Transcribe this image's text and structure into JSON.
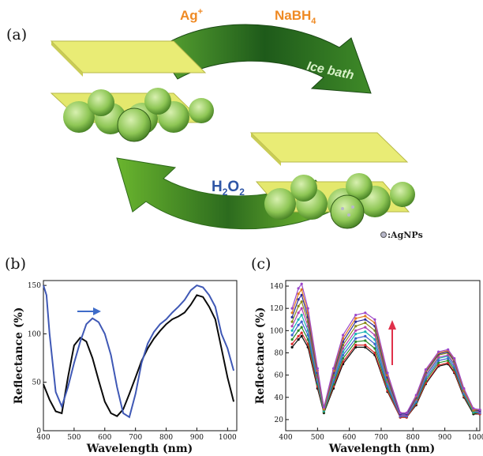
{
  "figure": {
    "panel_labels": [
      "(a)",
      "(b)",
      "(c)"
    ],
    "scheme": {
      "reagent_1": "Ag",
      "reagent_1_sup": "+",
      "reagent_2": "NaBH",
      "reagent_2_sub": "4",
      "condition": "Ice bath",
      "reverse_h": "H",
      "reverse_sub1": "2",
      "reverse_o": "O",
      "reverse_sub2": "2",
      "legend": ":AgNPs"
    },
    "colors": {
      "arrow_dark": "#1e5a1a",
      "arrow_light": "#7dc433",
      "plate": "#e9ec75",
      "sphere": "#8ec655",
      "red_arrow": "#e0304a",
      "blue_arrow": "#3f6cc9"
    }
  },
  "chart_data": [
    {
      "type": "line",
      "panel": "(b)",
      "xlabel": "Wavelength (nm)",
      "ylabel": "Reflectance (%)",
      "xlim": [
        400,
        1030
      ],
      "ylim": [
        0,
        155
      ],
      "xticks": [
        "400",
        "500",
        "600",
        "700",
        "800",
        "900",
        "1000"
      ],
      "yticks": [
        "0",
        "50",
        "100",
        "150"
      ],
      "grid": false,
      "annotation": "blue arrow pointing right (red shift)",
      "series": [
        {
          "color": "#0b0b0b",
          "x": [
            400,
            420,
            440,
            460,
            480,
            500,
            520,
            540,
            560,
            580,
            600,
            620,
            640,
            660,
            680,
            700,
            720,
            740,
            760,
            780,
            800,
            820,
            840,
            860,
            880,
            900,
            920,
            940,
            960,
            980,
            1000,
            1020
          ],
          "y": [
            48,
            32,
            20,
            18,
            55,
            88,
            96,
            92,
            75,
            52,
            30,
            18,
            15,
            22,
            38,
            55,
            72,
            85,
            95,
            103,
            110,
            115,
            118,
            122,
            130,
            140,
            138,
            128,
            115,
            85,
            55,
            30
          ]
        },
        {
          "color": "#3f58b5",
          "x": [
            400,
            410,
            420,
            440,
            460,
            480,
            500,
            520,
            540,
            560,
            580,
            600,
            620,
            640,
            660,
            680,
            700,
            720,
            740,
            760,
            780,
            800,
            820,
            840,
            860,
            880,
            900,
            920,
            940,
            960,
            980,
            1000,
            1020
          ],
          "y": [
            150,
            140,
            100,
            40,
            25,
            45,
            70,
            92,
            110,
            116,
            112,
            100,
            78,
            45,
            18,
            14,
            38,
            70,
            90,
            102,
            110,
            115,
            122,
            128,
            135,
            145,
            150,
            148,
            140,
            128,
            100,
            85,
            62
          ]
        }
      ]
    },
    {
      "type": "line",
      "panel": "(c)",
      "xlabel": "Wavelength (nm)",
      "ylabel": "Reflectance (%)",
      "xlim": [
        400,
        1010
      ],
      "ylim": [
        10,
        145
      ],
      "xticks": [
        "400",
        "500",
        "600",
        "700",
        "800",
        "900",
        "1000"
      ],
      "yticks": [
        "20",
        "40",
        "60",
        "80",
        "100",
        "120",
        "140"
      ],
      "grid": false,
      "annotation": "red arrow pointing up (increasing reflectance)",
      "x": [
        420,
        440,
        450,
        470,
        500,
        520,
        550,
        580,
        620,
        650,
        680,
        720,
        760,
        780,
        810,
        840,
        880,
        910,
        930,
        960,
        990,
        1010
      ],
      "series": [
        {
          "color": "#111111",
          "y": [
            85,
            92,
            95,
            85,
            48,
            26,
            48,
            70,
            85,
            85,
            78,
            45,
            22,
            22,
            33,
            52,
            68,
            70,
            62,
            40,
            25,
            25
          ]
        },
        {
          "color": "#d62a2a",
          "y": [
            88,
            95,
            98,
            88,
            50,
            27,
            50,
            72,
            87,
            87,
            80,
            46,
            22,
            22,
            34,
            53,
            69,
            71,
            63,
            41,
            26,
            25
          ]
        },
        {
          "color": "#2a8c2a",
          "y": [
            92,
            100,
            103,
            92,
            52,
            27,
            52,
            75,
            90,
            91,
            84,
            48,
            23,
            23,
            35,
            55,
            71,
            73,
            65,
            42,
            26,
            26
          ]
        },
        {
          "color": "#3a5fcf",
          "y": [
            96,
            105,
            108,
            96,
            54,
            28,
            54,
            78,
            93,
            95,
            88,
            50,
            23,
            23,
            36,
            57,
            73,
            75,
            67,
            43,
            27,
            26
          ]
        },
        {
          "color": "#19b3b3",
          "y": [
            100,
            110,
            114,
            100,
            56,
            28,
            56,
            81,
            97,
            99,
            92,
            52,
            24,
            24,
            37,
            59,
            75,
            77,
            69,
            44,
            27,
            27
          ]
        },
        {
          "color": "#b03fb0",
          "y": [
            104,
            116,
            120,
            104,
            58,
            29,
            58,
            84,
            100,
            103,
            96,
            54,
            24,
            24,
            38,
            60,
            76,
            78,
            70,
            45,
            28,
            27
          ]
        },
        {
          "color": "#8a8a1a",
          "y": [
            108,
            122,
            126,
            108,
            60,
            29,
            60,
            87,
            104,
            107,
            100,
            56,
            25,
            25,
            39,
            62,
            78,
            80,
            72,
            46,
            28,
            28
          ]
        },
        {
          "color": "#2c2c9a",
          "y": [
            112,
            128,
            132,
            112,
            62,
            30,
            62,
            90,
            108,
            110,
            104,
            58,
            25,
            25,
            40,
            63,
            79,
            81,
            73,
            47,
            29,
            28
          ]
        },
        {
          "color": "#e07a1e",
          "y": [
            116,
            133,
            137,
            116,
            64,
            30,
            64,
            93,
            111,
            113,
            107,
            60,
            26,
            26,
            41,
            64,
            80,
            82,
            74,
            47,
            29,
            29
          ]
        },
        {
          "color": "#9b46c9",
          "y": [
            120,
            138,
            142,
            120,
            66,
            31,
            66,
            96,
            114,
            116,
            110,
            62,
            26,
            26,
            42,
            65,
            81,
            83,
            75,
            48,
            30,
            29
          ]
        }
      ]
    }
  ]
}
